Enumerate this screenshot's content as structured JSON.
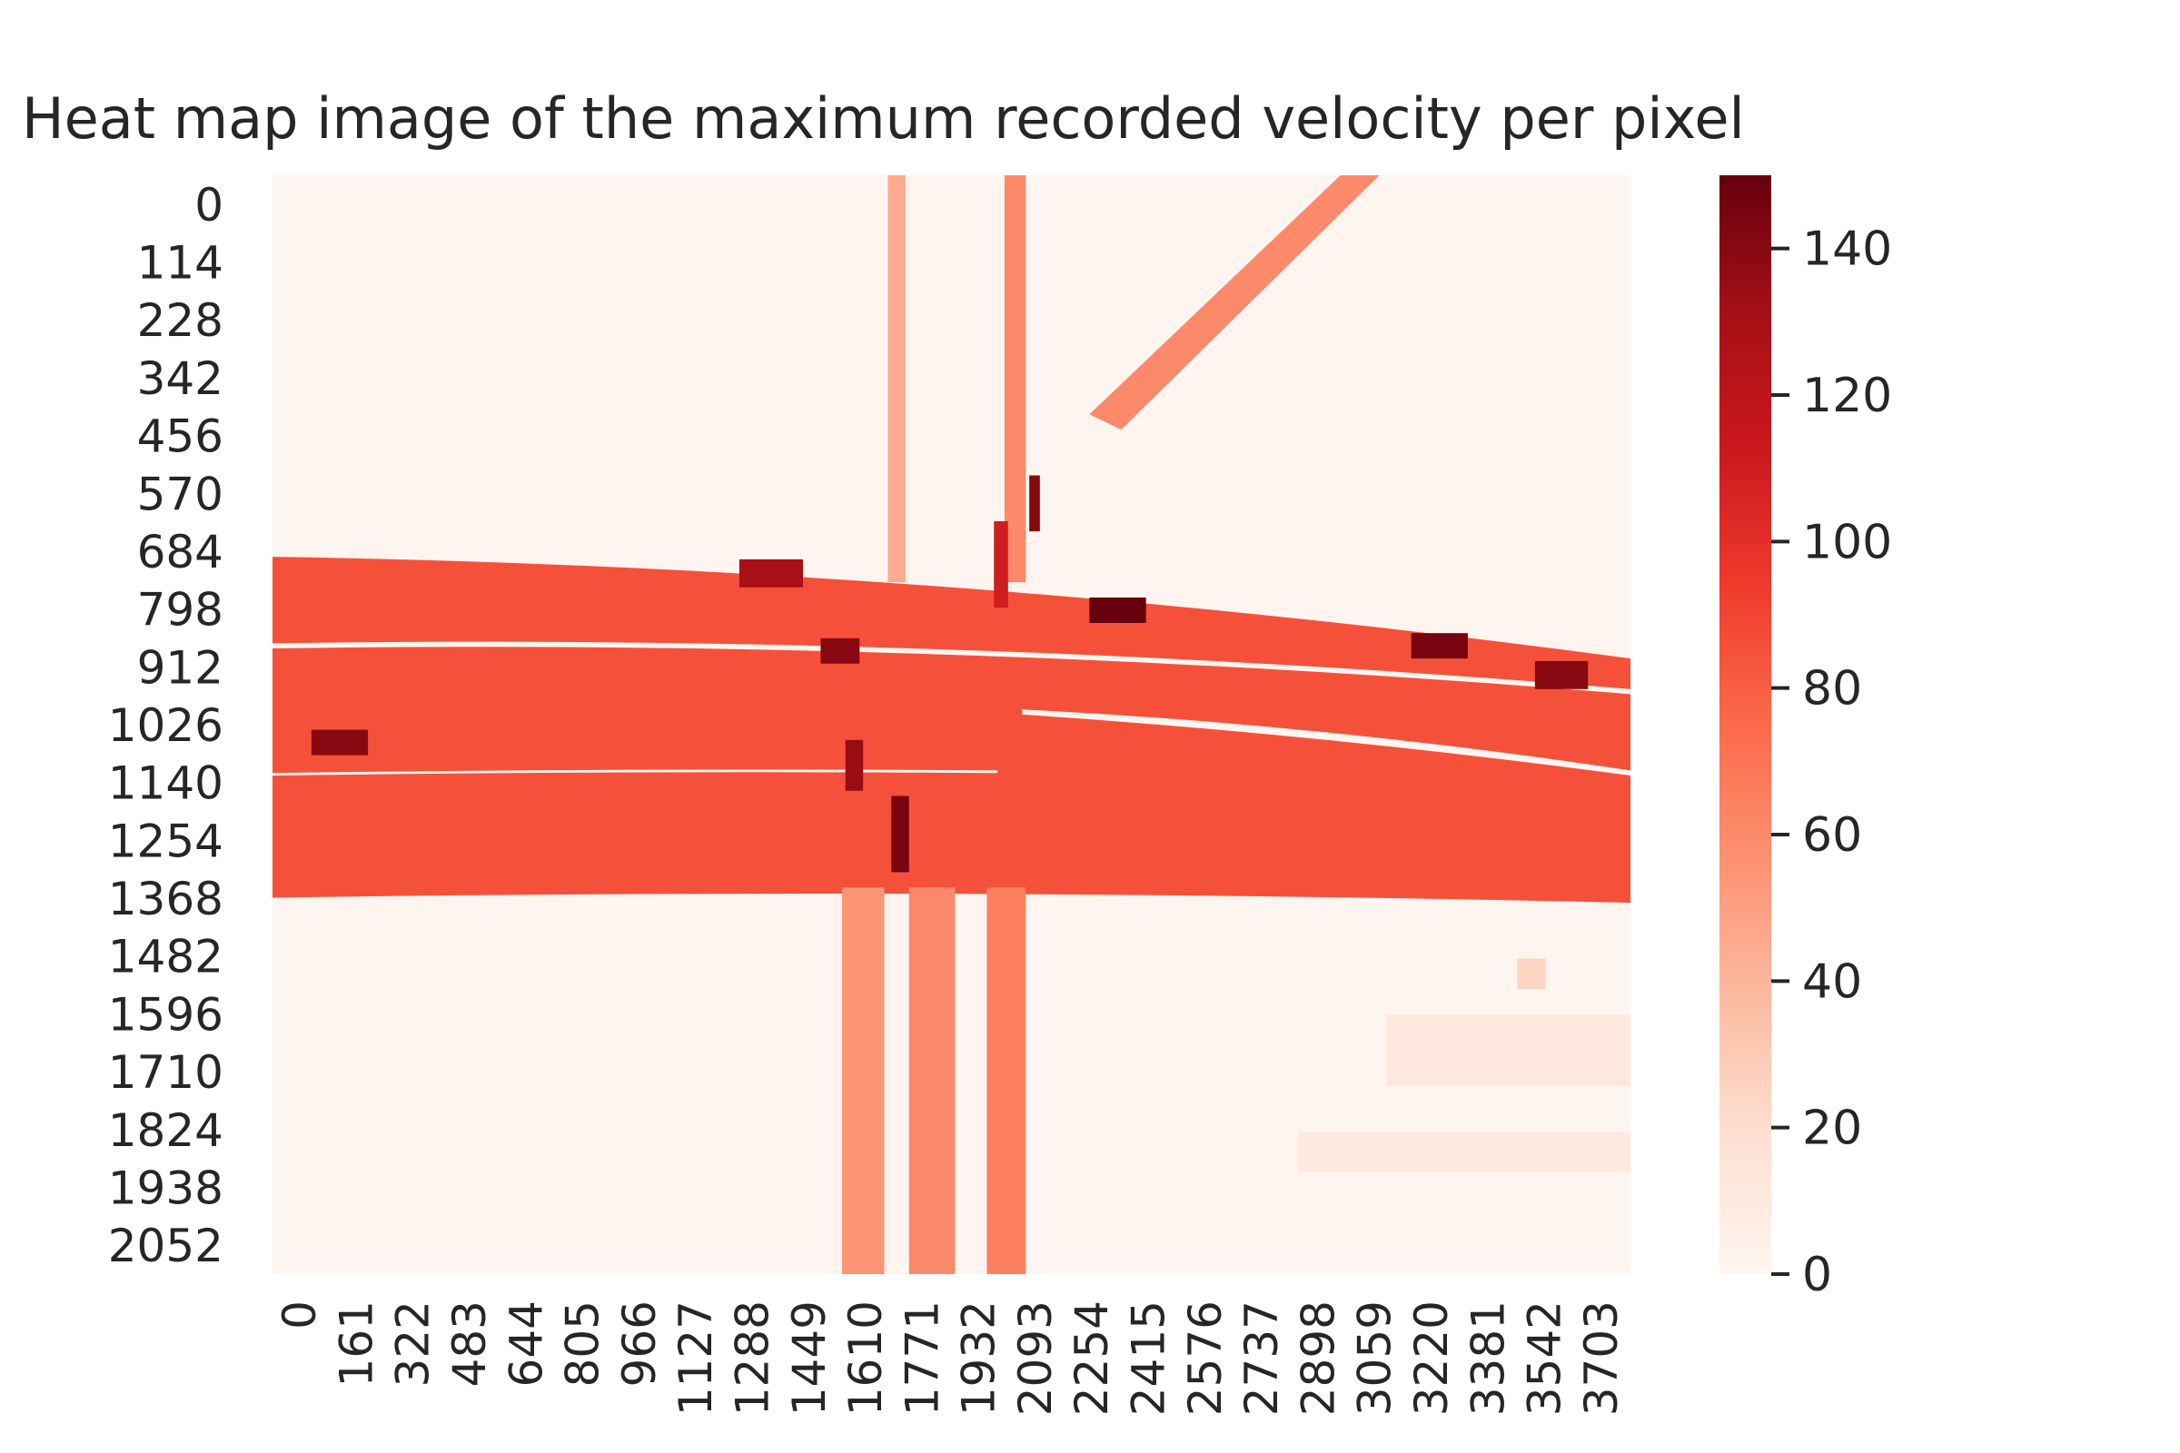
{
  "chart_data": {
    "type": "heatmap",
    "title": "Heat map image of the maximum recorded velocity per pixel",
    "xlabel": "",
    "ylabel": "",
    "x_tick_labels": [
      "0",
      "161",
      "322",
      "483",
      "644",
      "805",
      "966",
      "1127",
      "1288",
      "1449",
      "1610",
      "1771",
      "1932",
      "2093",
      "2254",
      "2415",
      "2576",
      "2737",
      "2898",
      "3059",
      "3220",
      "3381",
      "3542",
      "3703"
    ],
    "y_tick_labels": [
      "0",
      "114",
      "228",
      "342",
      "456",
      "570",
      "684",
      "798",
      "912",
      "1026",
      "1140",
      "1254",
      "1368",
      "1482",
      "1596",
      "1710",
      "1824",
      "1938",
      "2052"
    ],
    "x_range": [
      0,
      3840
    ],
    "y_range": [
      0,
      2160
    ],
    "colormap": "Reds",
    "colorbar": {
      "min": 0,
      "max": 150,
      "tick_labels": [
        "0",
        "20",
        "40",
        "60",
        "80",
        "100",
        "120",
        "140"
      ]
    },
    "regions": [
      {
        "shape": "band",
        "x": [
          0,
          3840
        ],
        "y_top": [
          750,
          770,
          950
        ],
        "y_bottom": [
          1420,
          1400,
          1430
        ],
        "value": 85
      },
      {
        "shape": "band",
        "x": [
          0,
          3840
        ],
        "y_top": [
          920,
          900,
          1010
        ],
        "y_bottom": [
          930,
          910,
          1020
        ],
        "value": 0
      },
      {
        "shape": "band",
        "x": [
          0,
          2050
        ],
        "y_top": [
          1175,
          1165,
          1170
        ],
        "y_bottom": [
          1180,
          1170,
          1175
        ],
        "value": 0
      },
      {
        "shape": "band",
        "x": [
          2120,
          3840
        ],
        "y_top": [
          1050,
          1080,
          1170
        ],
        "y_bottom": [
          1060,
          1100,
          1180
        ],
        "value": 0
      },
      {
        "shape": "rect",
        "x": [
          1740,
          1790
        ],
        "y": [
          0,
          800
        ],
        "value": 45
      },
      {
        "shape": "rect",
        "x": [
          2070,
          2130
        ],
        "y": [
          0,
          800
        ],
        "value": 60
      },
      {
        "shape": "rect",
        "x": [
          2040,
          2080
        ],
        "y": [
          680,
          850
        ],
        "value": 110
      },
      {
        "shape": "rect",
        "x": [
          2140,
          2170
        ],
        "y": [
          590,
          700
        ],
        "value": 140
      },
      {
        "shape": "poly",
        "points": [
          [
            2310,
            470
          ],
          [
            2400,
            500
          ],
          [
            3130,
            0
          ],
          [
            3020,
            0
          ]
        ],
        "value": 60
      },
      {
        "shape": "rect",
        "x": [
          1610,
          1730
        ],
        "y": [
          1400,
          2160
        ],
        "value": 55
      },
      {
        "shape": "rect",
        "x": [
          1800,
          1930
        ],
        "y": [
          1400,
          2160
        ],
        "value": 60
      },
      {
        "shape": "rect",
        "x": [
          2020,
          2130
        ],
        "y": [
          1400,
          2160
        ],
        "value": 65
      },
      {
        "shape": "rect",
        "x": [
          1750,
          1800
        ],
        "y": [
          1220,
          1370
        ],
        "value": 145
      },
      {
        "shape": "rect",
        "x": [
          1620,
          1670
        ],
        "y": [
          1110,
          1210
        ],
        "value": 135
      },
      {
        "shape": "rect",
        "x": [
          2310,
          2470
        ],
        "y": [
          830,
          880
        ],
        "value": 150
      },
      {
        "shape": "rect",
        "x": [
          3220,
          3380
        ],
        "y": [
          900,
          950
        ],
        "value": 145
      },
      {
        "shape": "rect",
        "x": [
          3570,
          3720
        ],
        "y": [
          955,
          1010
        ],
        "value": 140
      },
      {
        "shape": "rect",
        "x": [
          1550,
          1660
        ],
        "y": [
          910,
          960
        ],
        "value": 140
      },
      {
        "shape": "rect",
        "x": [
          110,
          270
        ],
        "y": [
          1090,
          1140
        ],
        "value": 140
      },
      {
        "shape": "rect",
        "x": [
          1320,
          1500
        ],
        "y": [
          755,
          810
        ],
        "value": 130
      },
      {
        "shape": "rect",
        "x": [
          3150,
          3840
        ],
        "y": [
          1650,
          1790
        ],
        "value": 12
      },
      {
        "shape": "rect",
        "x": [
          2900,
          3840
        ],
        "y": [
          1880,
          1960
        ],
        "value": 10
      },
      {
        "shape": "rect",
        "x": [
          3520,
          3600
        ],
        "y": [
          1540,
          1600
        ],
        "value": 25
      }
    ]
  }
}
